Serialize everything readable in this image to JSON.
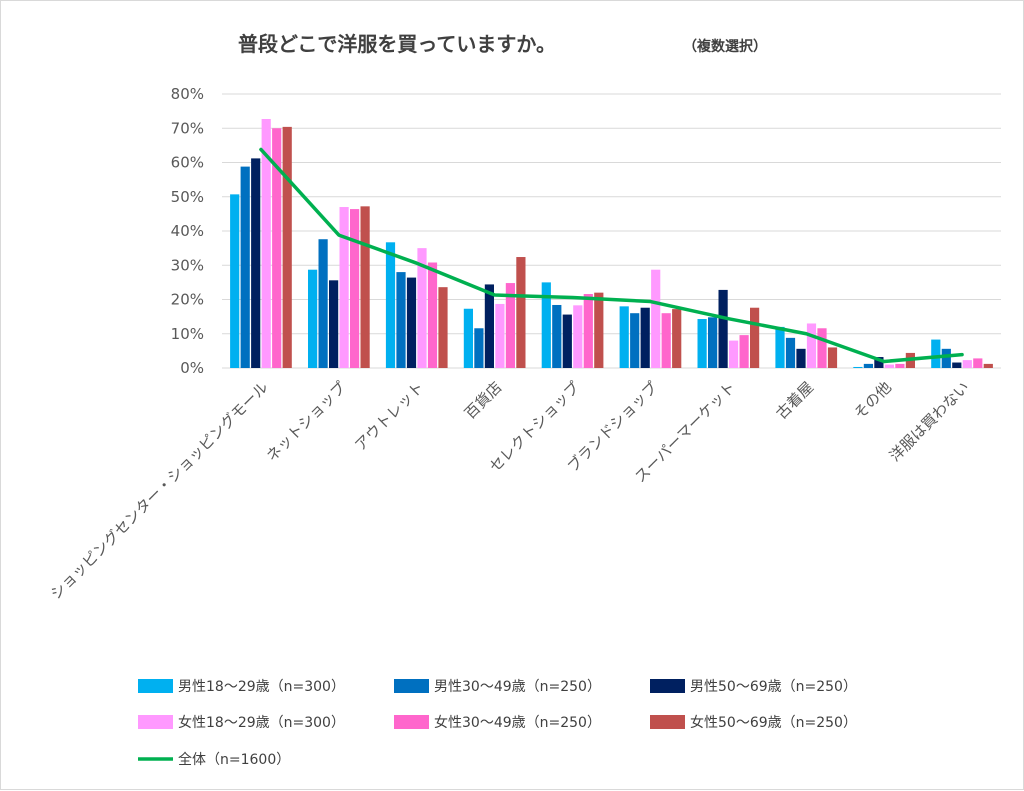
{
  "chart_data": {
    "type": "bar",
    "title": "普段どこで洋服を買っていますか。",
    "subtitle": "（複数選択）",
    "categories": [
      "ショッピングセンター・ショッピングモール",
      "ネットショップ",
      "アウトレット",
      "百貨店",
      "セレクトショップ",
      "ブランドショップ",
      "スーパーマーケット",
      "古着屋",
      "その他",
      "洋服は買わない"
    ],
    "y_tick_labels": [
      "0%",
      "10%",
      "20%",
      "30%",
      "40%",
      "50%",
      "60%",
      "70%",
      "80%"
    ],
    "ylim": [
      0,
      80
    ],
    "grid": true,
    "legend_position": "bottom",
    "series": [
      {
        "name": "男性18〜29歳（n=300）",
        "color": "#00b0f0",
        "values": [
          50.7,
          28.7,
          36.7,
          17.3,
          25.0,
          18.0,
          14.3,
          12.0,
          0.3,
          8.3
        ]
      },
      {
        "name": "男性30〜49歳（n=250）",
        "color": "#0070c0",
        "values": [
          58.8,
          37.6,
          28.0,
          11.6,
          18.4,
          16.0,
          14.8,
          8.8,
          1.2,
          5.6
        ]
      },
      {
        "name": "男性50〜69歳（n=250）",
        "color": "#002060",
        "values": [
          61.2,
          25.6,
          26.4,
          24.4,
          15.6,
          17.6,
          22.8,
          5.6,
          3.2,
          1.6
        ]
      },
      {
        "name": "女性18〜29歳（n=300）",
        "color": "#ff99ff",
        "values": [
          72.7,
          47.0,
          35.0,
          18.7,
          18.3,
          28.7,
          8.0,
          13.0,
          1.0,
          2.3
        ]
      },
      {
        "name": "女性30〜49歳（n=250）",
        "color": "#ff66cc",
        "values": [
          70.0,
          46.4,
          30.8,
          24.8,
          21.6,
          16.0,
          9.6,
          11.6,
          1.2,
          2.8
        ]
      },
      {
        "name": "女性50〜69歳（n=250）",
        "color": "#c0504d",
        "values": [
          70.4,
          47.2,
          23.6,
          32.4,
          22.0,
          17.2,
          17.6,
          6.0,
          4.4,
          1.2
        ]
      }
    ],
    "line_series": {
      "name": "全体（n=1600）",
      "color": "#00b050",
      "values": [
        63.8,
        38.8,
        30.6,
        21.3,
        20.6,
        19.4,
        14.4,
        10.0,
        1.9,
        3.9
      ]
    }
  }
}
